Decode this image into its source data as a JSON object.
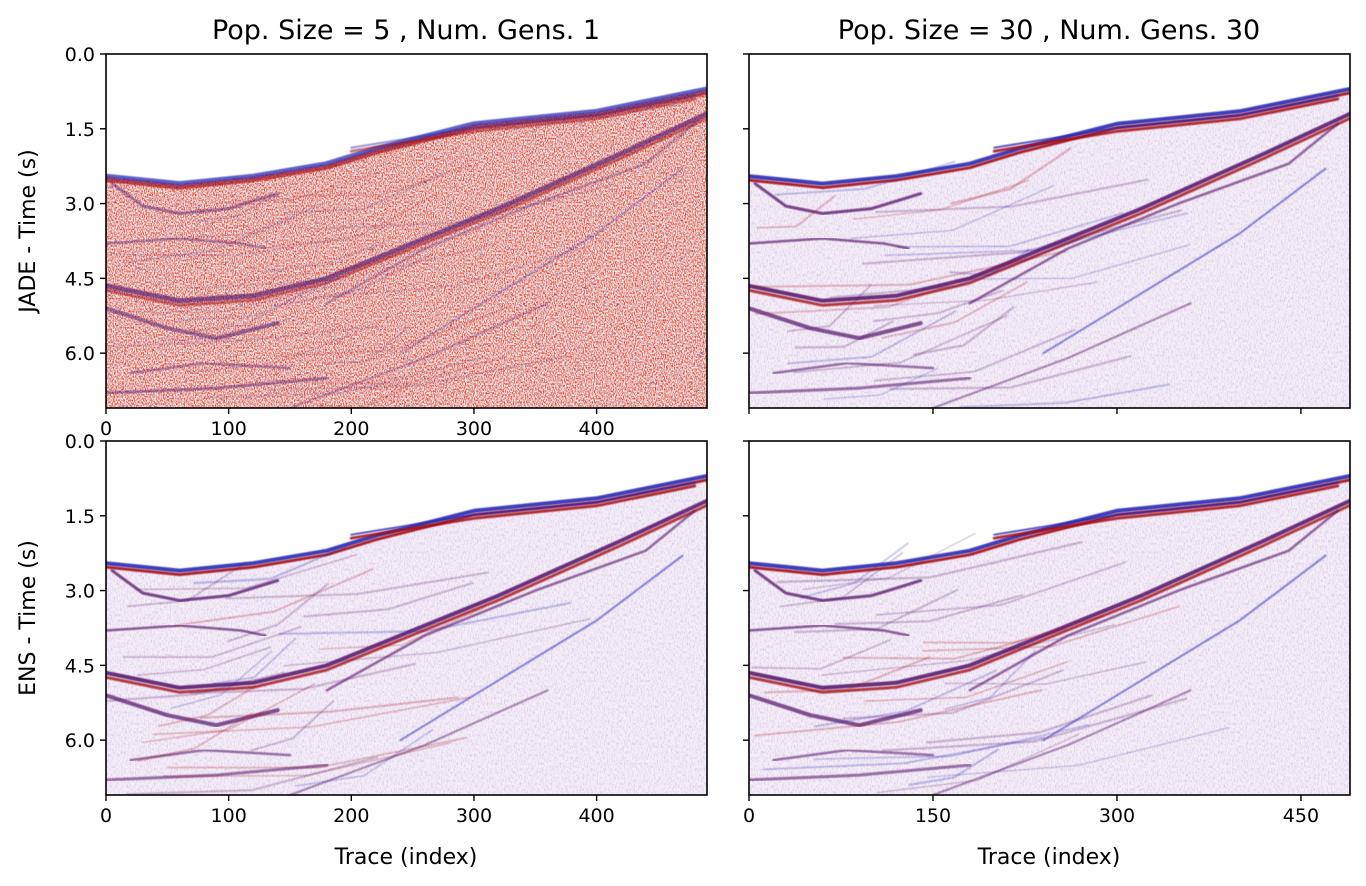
{
  "chart_data": [
    {
      "type": "heatmap",
      "title": "Pop. Size = 5 , Num. Gens. 1",
      "ylabel": "JADE - Time (s)",
      "xlabel": "",
      "xlim": [
        0,
        490
      ],
      "ylim": [
        7.1,
        0.0
      ],
      "xticks": [
        0,
        100,
        200,
        300,
        400
      ],
      "xtick_labels": [
        "0",
        "100",
        "200",
        "300",
        "400"
      ],
      "yticks": [
        0.0,
        1.5,
        3.0,
        4.5,
        6.0
      ],
      "ytick_labels": [
        "0.0",
        "1.5",
        "3.0",
        "4.5",
        "6.0"
      ],
      "colormap": "seismic",
      "noise_level": "high"
    },
    {
      "type": "heatmap",
      "title": "Pop. Size = 30 , Num. Gens. 30",
      "ylabel": "",
      "xlabel": "",
      "xlim": [
        0,
        490
      ],
      "ylim": [
        7.1,
        0.0
      ],
      "xticks": [
        0,
        150,
        300,
        450
      ],
      "xtick_labels": [],
      "yticks": [
        0.0,
        1.5,
        3.0,
        4.5,
        6.0
      ],
      "ytick_labels": [],
      "colormap": "seismic",
      "noise_level": "low"
    },
    {
      "type": "heatmap",
      "title": "",
      "ylabel": "ENS - Time (s)",
      "xlabel": "Trace (index)",
      "xlim": [
        0,
        490
      ],
      "ylim": [
        7.1,
        0.0
      ],
      "xticks": [
        0,
        100,
        200,
        300,
        400
      ],
      "xtick_labels": [
        "0",
        "100",
        "200",
        "300",
        "400"
      ],
      "yticks": [
        0.0,
        1.5,
        3.0,
        4.5,
        6.0
      ],
      "ytick_labels": [
        "0.0",
        "1.5",
        "3.0",
        "4.5",
        "6.0"
      ],
      "colormap": "seismic",
      "noise_level": "low"
    },
    {
      "type": "heatmap",
      "title": "",
      "ylabel": "",
      "xlabel": "Trace (index)",
      "xlim": [
        0,
        490
      ],
      "ylim": [
        7.1,
        0.0
      ],
      "xticks": [
        0,
        150,
        300,
        450
      ],
      "xtick_labels": [
        "0",
        "150",
        "300",
        "450"
      ],
      "yticks": [
        0.0,
        1.5,
        3.0,
        4.5,
        6.0
      ],
      "ytick_labels": [],
      "colormap": "seismic",
      "noise_level": "low"
    }
  ],
  "reflectors": {
    "seafloor": [
      [
        0,
        2.45
      ],
      [
        60,
        2.6
      ],
      [
        120,
        2.45
      ],
      [
        180,
        2.2
      ],
      [
        220,
        1.9
      ],
      [
        300,
        1.4
      ],
      [
        400,
        1.15
      ],
      [
        490,
        0.7
      ]
    ],
    "deep_horizon": [
      [
        0,
        4.65
      ],
      [
        60,
        4.95
      ],
      [
        120,
        4.85
      ],
      [
        180,
        4.5
      ],
      [
        240,
        3.9
      ],
      [
        320,
        3.1
      ],
      [
        420,
        2.0
      ],
      [
        490,
        1.2
      ]
    ],
    "upper_bowl": [
      [
        5,
        2.6
      ],
      [
        30,
        3.05
      ],
      [
        60,
        3.2
      ],
      [
        100,
        3.1
      ],
      [
        140,
        2.8
      ]
    ],
    "mid_layer": [
      [
        0,
        3.8
      ],
      [
        60,
        3.7
      ],
      [
        110,
        3.8
      ],
      [
        130,
        3.9
      ]
    ],
    "lower_bowl": [
      [
        0,
        5.1
      ],
      [
        50,
        5.5
      ],
      [
        90,
        5.7
      ],
      [
        140,
        5.4
      ]
    ],
    "dip_a": [
      [
        180,
        5.0
      ],
      [
        260,
        3.9
      ],
      [
        350,
        3.0
      ],
      [
        440,
        2.2
      ],
      [
        480,
        1.4
      ]
    ],
    "dip_b": [
      [
        240,
        6.0
      ],
      [
        320,
        4.8
      ],
      [
        400,
        3.6
      ],
      [
        470,
        2.3
      ]
    ],
    "shallow_upper": [
      [
        200,
        1.95
      ],
      [
        300,
        1.55
      ],
      [
        400,
        1.3
      ],
      [
        480,
        0.9
      ]
    ],
    "deep_a": [
      [
        20,
        6.4
      ],
      [
        80,
        6.2
      ],
      [
        150,
        6.3
      ]
    ],
    "deep_b": [
      [
        0,
        6.8
      ],
      [
        90,
        6.7
      ],
      [
        180,
        6.5
      ]
    ],
    "deep_c": [
      [
        150,
        7.1
      ],
      [
        260,
        6.1
      ],
      [
        360,
        5.0
      ]
    ]
  },
  "colors": {
    "red": "#a50f15",
    "blue": "#2c2cb4",
    "purple": "#5a1c6e",
    "background": "#ffffff"
  }
}
